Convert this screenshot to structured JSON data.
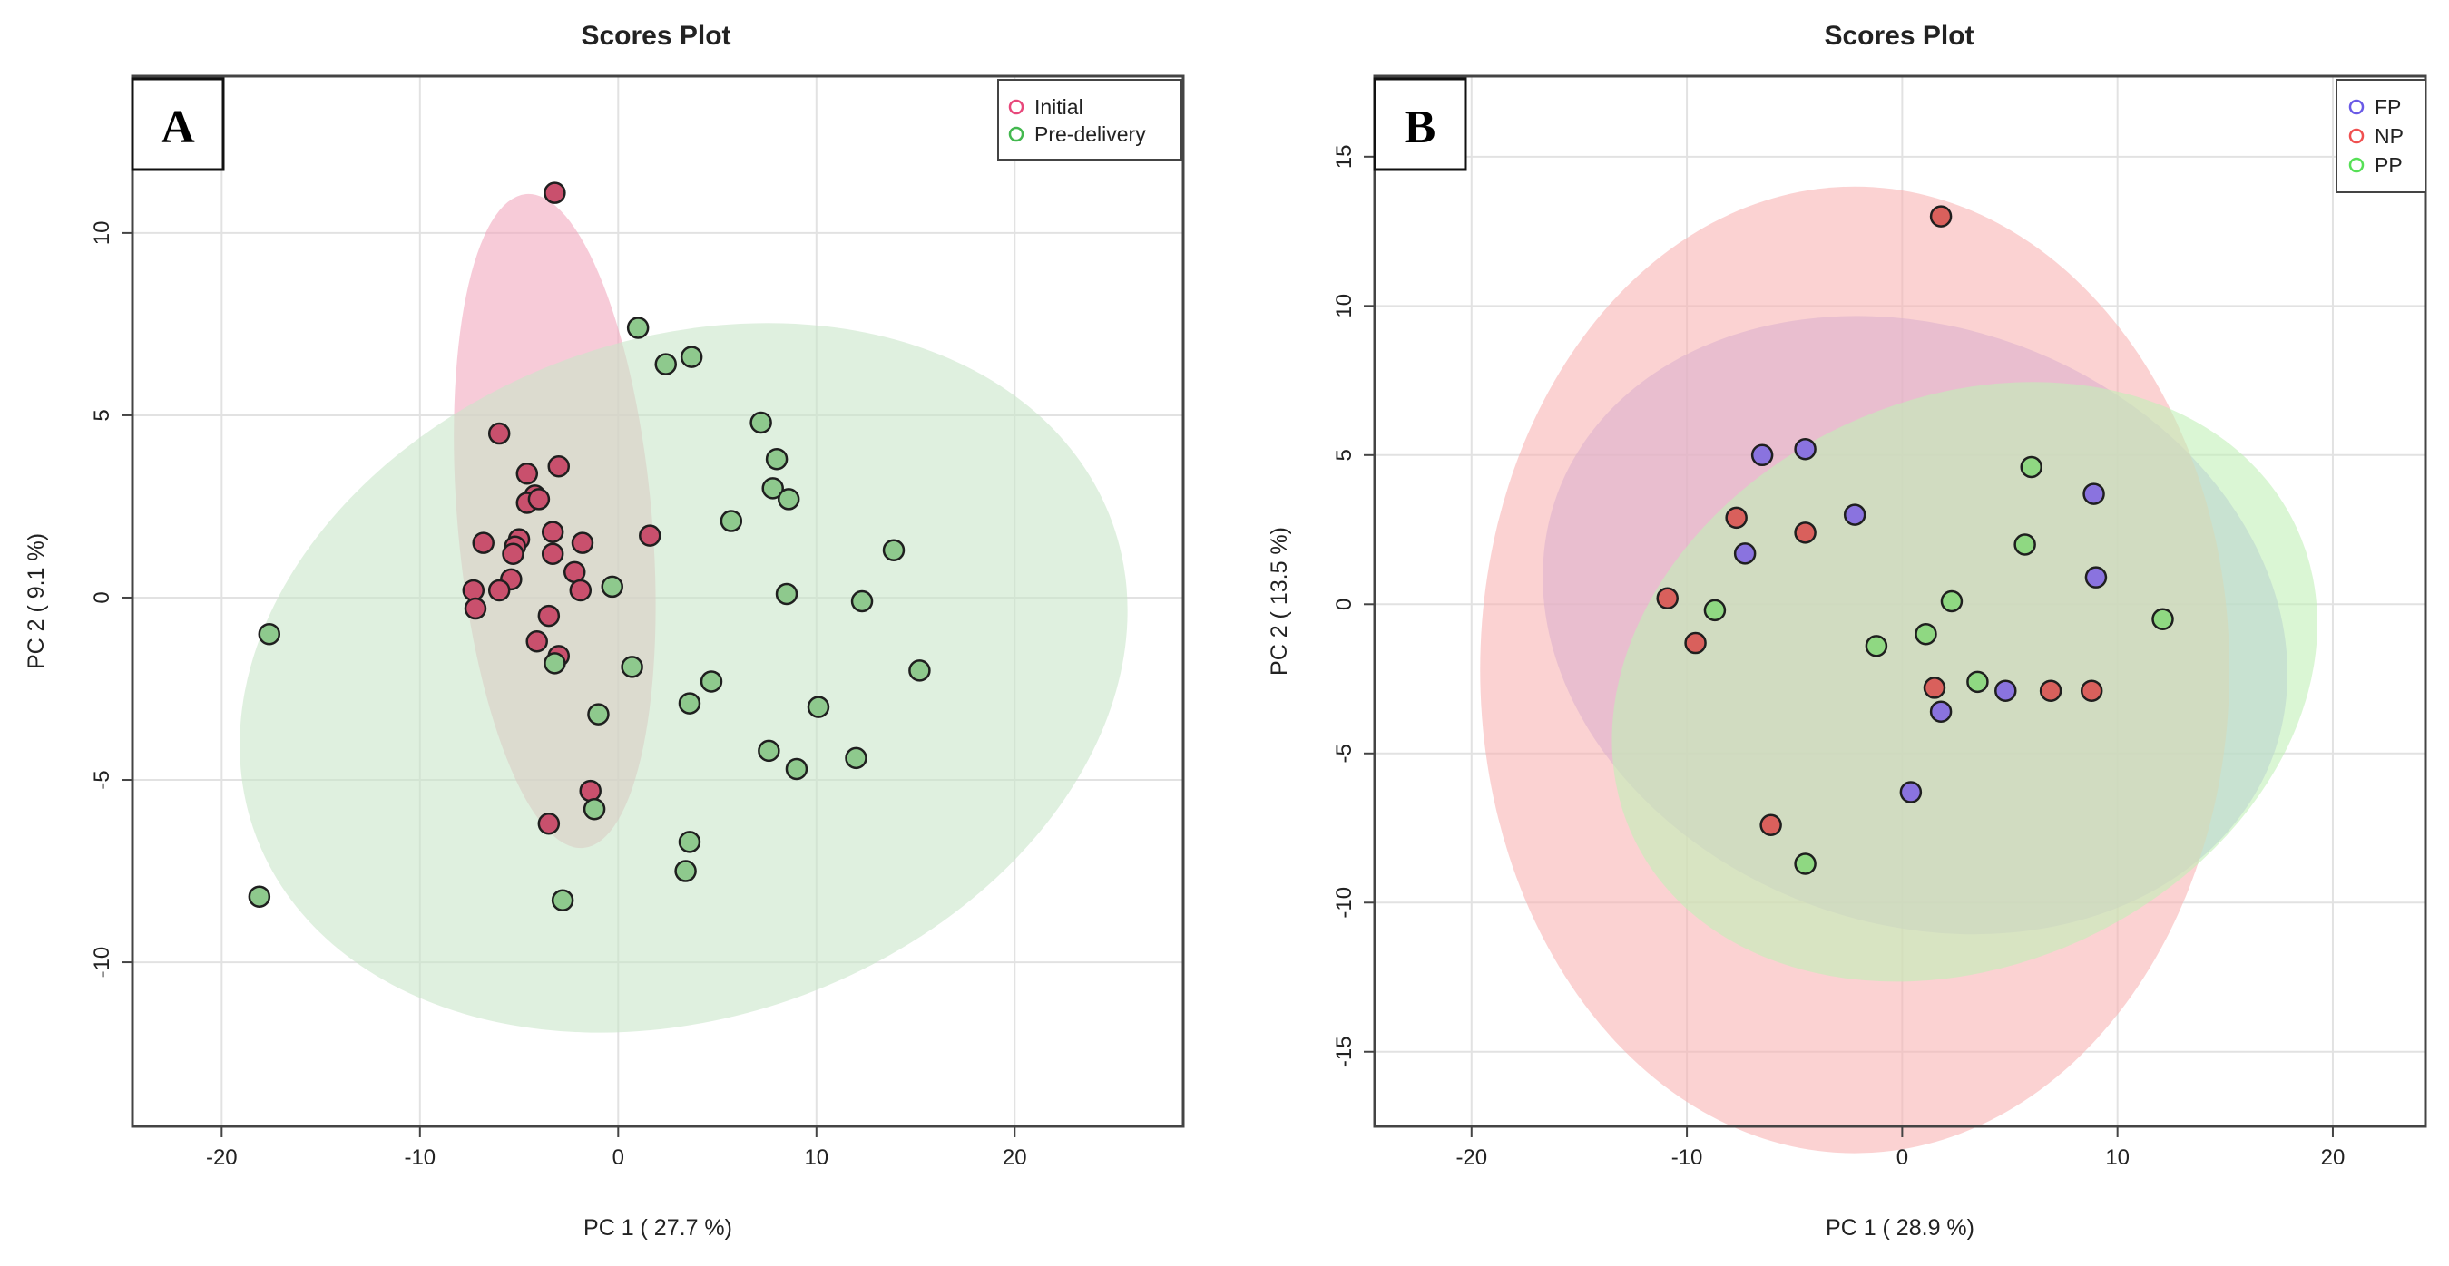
{
  "chart_data": [
    {
      "type": "scatter",
      "panel_label": "A",
      "title": "Scores Plot",
      "xlabel": "PC 1 ( 27.7 %)",
      "ylabel": "PC 2 ( 9.1 %)",
      "xlim": [
        -24.5,
        28.5
      ],
      "ylim": [
        -14.5,
        14.3
      ],
      "xticks": [
        -20,
        -10,
        0,
        10,
        20
      ],
      "yticks": [
        -10,
        -5,
        0,
        5,
        10
      ],
      "grid": true,
      "legend_position": "top-right",
      "series": [
        {
          "name": "Initial",
          "color": "#e8487b",
          "fill": "#c9506d",
          "ellipse": {
            "cx": -3.2,
            "cy": 2.1,
            "rx": 4.9,
            "ry": 9.0,
            "angle_deg": 5,
            "color": "#f1a8be"
          },
          "points": [
            [
              -3.2,
              11.1
            ],
            [
              -6.0,
              4.5
            ],
            [
              -3.0,
              3.6
            ],
            [
              -4.6,
              3.4
            ],
            [
              -4.2,
              2.8
            ],
            [
              -4.6,
              2.6
            ],
            [
              -4.0,
              2.7
            ],
            [
              -3.3,
              1.8
            ],
            [
              -5.0,
              1.6
            ],
            [
              -5.2,
              1.4
            ],
            [
              -6.8,
              1.5
            ],
            [
              -1.8,
              1.5
            ],
            [
              1.6,
              1.7
            ],
            [
              -3.3,
              1.2
            ],
            [
              -5.3,
              1.2
            ],
            [
              -2.2,
              0.7
            ],
            [
              -5.4,
              0.5
            ],
            [
              -6.0,
              0.2
            ],
            [
              -7.3,
              0.2
            ],
            [
              -1.9,
              0.2
            ],
            [
              -7.2,
              -0.3
            ],
            [
              -3.5,
              -0.5
            ],
            [
              -4.1,
              -1.2
            ],
            [
              -3.0,
              -1.6
            ],
            [
              -1.4,
              -5.3
            ],
            [
              -3.5,
              -6.2
            ]
          ]
        },
        {
          "name": "Pre-delivery",
          "color": "#42b84e",
          "fill": "#8ec98d",
          "ellipse": {
            "cx": 3.3,
            "cy": -2.2,
            "rx": 23.0,
            "ry": 9.3,
            "angle_deg": 20,
            "color": "#c9e6c9"
          },
          "points": [
            [
              1.0,
              7.4
            ],
            [
              3.7,
              6.6
            ],
            [
              2.4,
              6.4
            ],
            [
              7.2,
              4.8
            ],
            [
              8.0,
              3.8
            ],
            [
              7.8,
              3.0
            ],
            [
              8.6,
              2.7
            ],
            [
              5.7,
              2.1
            ],
            [
              13.9,
              1.3
            ],
            [
              -0.3,
              0.3
            ],
            [
              8.5,
              0.1
            ],
            [
              12.3,
              -0.1
            ],
            [
              -17.6,
              -1.0
            ],
            [
              -3.2,
              -1.8
            ],
            [
              0.7,
              -1.9
            ],
            [
              15.2,
              -2.0
            ],
            [
              4.7,
              -2.3
            ],
            [
              3.6,
              -2.9
            ],
            [
              10.1,
              -3.0
            ],
            [
              -1.0,
              -3.2
            ],
            [
              7.6,
              -4.2
            ],
            [
              12.0,
              -4.4
            ],
            [
              9.0,
              -4.7
            ],
            [
              -1.2,
              -5.8
            ],
            [
              3.6,
              -6.7
            ],
            [
              3.4,
              -7.5
            ],
            [
              -18.1,
              -8.2
            ],
            [
              -2.8,
              -8.3
            ]
          ]
        }
      ]
    },
    {
      "type": "scatter",
      "panel_label": "B",
      "title": "Scores Plot",
      "xlabel": "PC 1 ( 28.9 %)",
      "ylabel": "PC 2 ( 13.5 %)",
      "xlim": [
        -24.5,
        24.3
      ],
      "ylim": [
        -17.5,
        17.7
      ],
      "xticks": [
        -20,
        -10,
        0,
        10,
        20
      ],
      "yticks": [
        -15,
        -10,
        -5,
        0,
        5,
        10,
        15
      ],
      "grid": true,
      "legend_position": "top-right",
      "series": [
        {
          "name": "FP",
          "color": "#6a5ae6",
          "fill": "#8a73df",
          "ellipse": {
            "cx": 0.6,
            "cy": -0.7,
            "rx": 17.7,
            "ry": 10.0,
            "angle_deg": -20,
            "color": "#b4aef2"
          },
          "points": [
            [
              -6.5,
              5.0
            ],
            [
              -4.5,
              5.2
            ],
            [
              -2.2,
              3.0
            ],
            [
              8.9,
              3.7
            ],
            [
              -7.3,
              1.7
            ],
            [
              9.0,
              0.9
            ],
            [
              4.8,
              -2.9
            ],
            [
              1.8,
              -3.6
            ],
            [
              0.4,
              -6.3
            ]
          ]
        },
        {
          "name": "NP",
          "color": "#f05050",
          "fill": "#d9605c",
          "ellipse": {
            "cx": -2.2,
            "cy": -2.2,
            "rx": 17.4,
            "ry": 16.2,
            "angle_deg": 0,
            "color": "#f8b4b4"
          },
          "points": [
            [
              1.8,
              13.0
            ],
            [
              -7.7,
              2.9
            ],
            [
              -4.5,
              2.4
            ],
            [
              -10.9,
              0.2
            ],
            [
              -9.6,
              -1.3
            ],
            [
              1.5,
              -2.8
            ],
            [
              6.9,
              -2.9
            ],
            [
              8.8,
              -2.9
            ],
            [
              -6.1,
              -7.4
            ]
          ]
        },
        {
          "name": "PP",
          "color": "#56e056",
          "fill": "#8fd882",
          "ellipse": {
            "cx": 2.9,
            "cy": -2.6,
            "rx": 17.0,
            "ry": 9.5,
            "angle_deg": 25,
            "color": "#c2f0b8"
          },
          "points": [
            [
              6.0,
              4.6
            ],
            [
              5.7,
              2.0
            ],
            [
              -8.7,
              -0.2
            ],
            [
              2.3,
              0.1
            ],
            [
              12.1,
              -0.5
            ],
            [
              1.1,
              -1.0
            ],
            [
              -1.2,
              -1.4
            ],
            [
              3.5,
              -2.6
            ],
            [
              -4.5,
              -8.7
            ]
          ]
        }
      ]
    }
  ]
}
